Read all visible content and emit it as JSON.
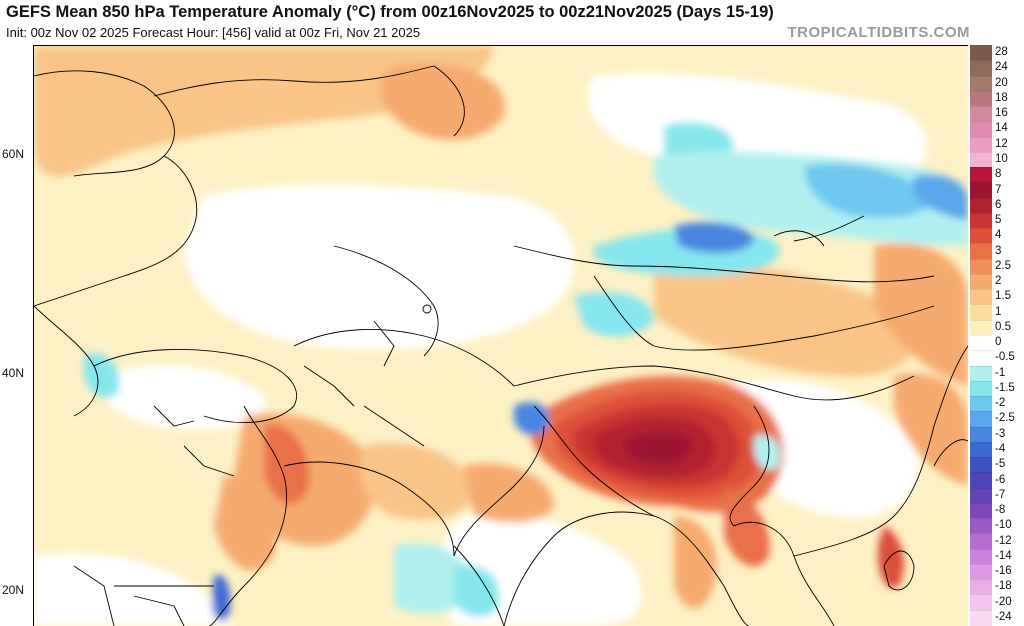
{
  "header": {
    "title": "GEFS Mean 850 hPa Temperature Anomaly (°C) from 00z16Nov2025 to 00z21Nov2025 (Days 15-19)",
    "subtitle": "Init: 00z Nov 02 2025   Forecast Hour: [456]   valid at 00z Fri, Nov 21 2025",
    "watermark": "TROPICALTIDBITS.COM"
  },
  "map": {
    "latitude_labels": [
      "60N",
      "40N",
      "20N"
    ]
  },
  "colorbar": {
    "levels": [
      {
        "label": "28",
        "color": "#7a5a4c"
      },
      {
        "label": "24",
        "color": "#8e6a5a"
      },
      {
        "label": "20",
        "color": "#a47a6a"
      },
      {
        "label": "18",
        "color": "#b8787e"
      },
      {
        "label": "16",
        "color": "#d08aa0"
      },
      {
        "label": "14",
        "color": "#e08aaf"
      },
      {
        "label": "12",
        "color": "#ec9dc4"
      },
      {
        "label": "10",
        "color": "#f2b6d4"
      },
      {
        "label": "8",
        "color": "#b5163a"
      },
      {
        "label": "7",
        "color": "#9c1530"
      },
      {
        "label": "6",
        "color": "#b0222e"
      },
      {
        "label": "5",
        "color": "#c83532"
      },
      {
        "label": "4",
        "color": "#dc4f3a"
      },
      {
        "label": "3",
        "color": "#ea7048"
      },
      {
        "label": "2.5",
        "color": "#f08f5a"
      },
      {
        "label": "2",
        "color": "#f5aa70"
      },
      {
        "label": "1.5",
        "color": "#f8c488"
      },
      {
        "label": "1",
        "color": "#fbdb9f"
      },
      {
        "label": "0.5",
        "color": "#fdeebb"
      },
      {
        "label": "0",
        "color": "#ffffff"
      },
      {
        "label": "-0.5",
        "color": "#ffffff"
      },
      {
        "label": "-1",
        "color": "#b2f0f0"
      },
      {
        "label": "-1.5",
        "color": "#86e6ee"
      },
      {
        "label": "-2",
        "color": "#6ec8ef"
      },
      {
        "label": "-2.5",
        "color": "#5aa6ea"
      },
      {
        "label": "-3",
        "color": "#4a86e0"
      },
      {
        "label": "-4",
        "color": "#3f6ad4"
      },
      {
        "label": "-5",
        "color": "#3b52c4"
      },
      {
        "label": "-6",
        "color": "#4c46b8"
      },
      {
        "label": "-7",
        "color": "#6244b6"
      },
      {
        "label": "-8",
        "color": "#7a46b8"
      },
      {
        "label": "-10",
        "color": "#9a5ac4"
      },
      {
        "label": "-12",
        "color": "#b46ed0"
      },
      {
        "label": "-14",
        "color": "#c884dc"
      },
      {
        "label": "-16",
        "color": "#dc9ae4"
      },
      {
        "label": "-18",
        "color": "#e8aee8"
      },
      {
        "label": "-20",
        "color": "#f2c4ee"
      },
      {
        "label": "-24",
        "color": "#fad8f4"
      }
    ]
  }
}
